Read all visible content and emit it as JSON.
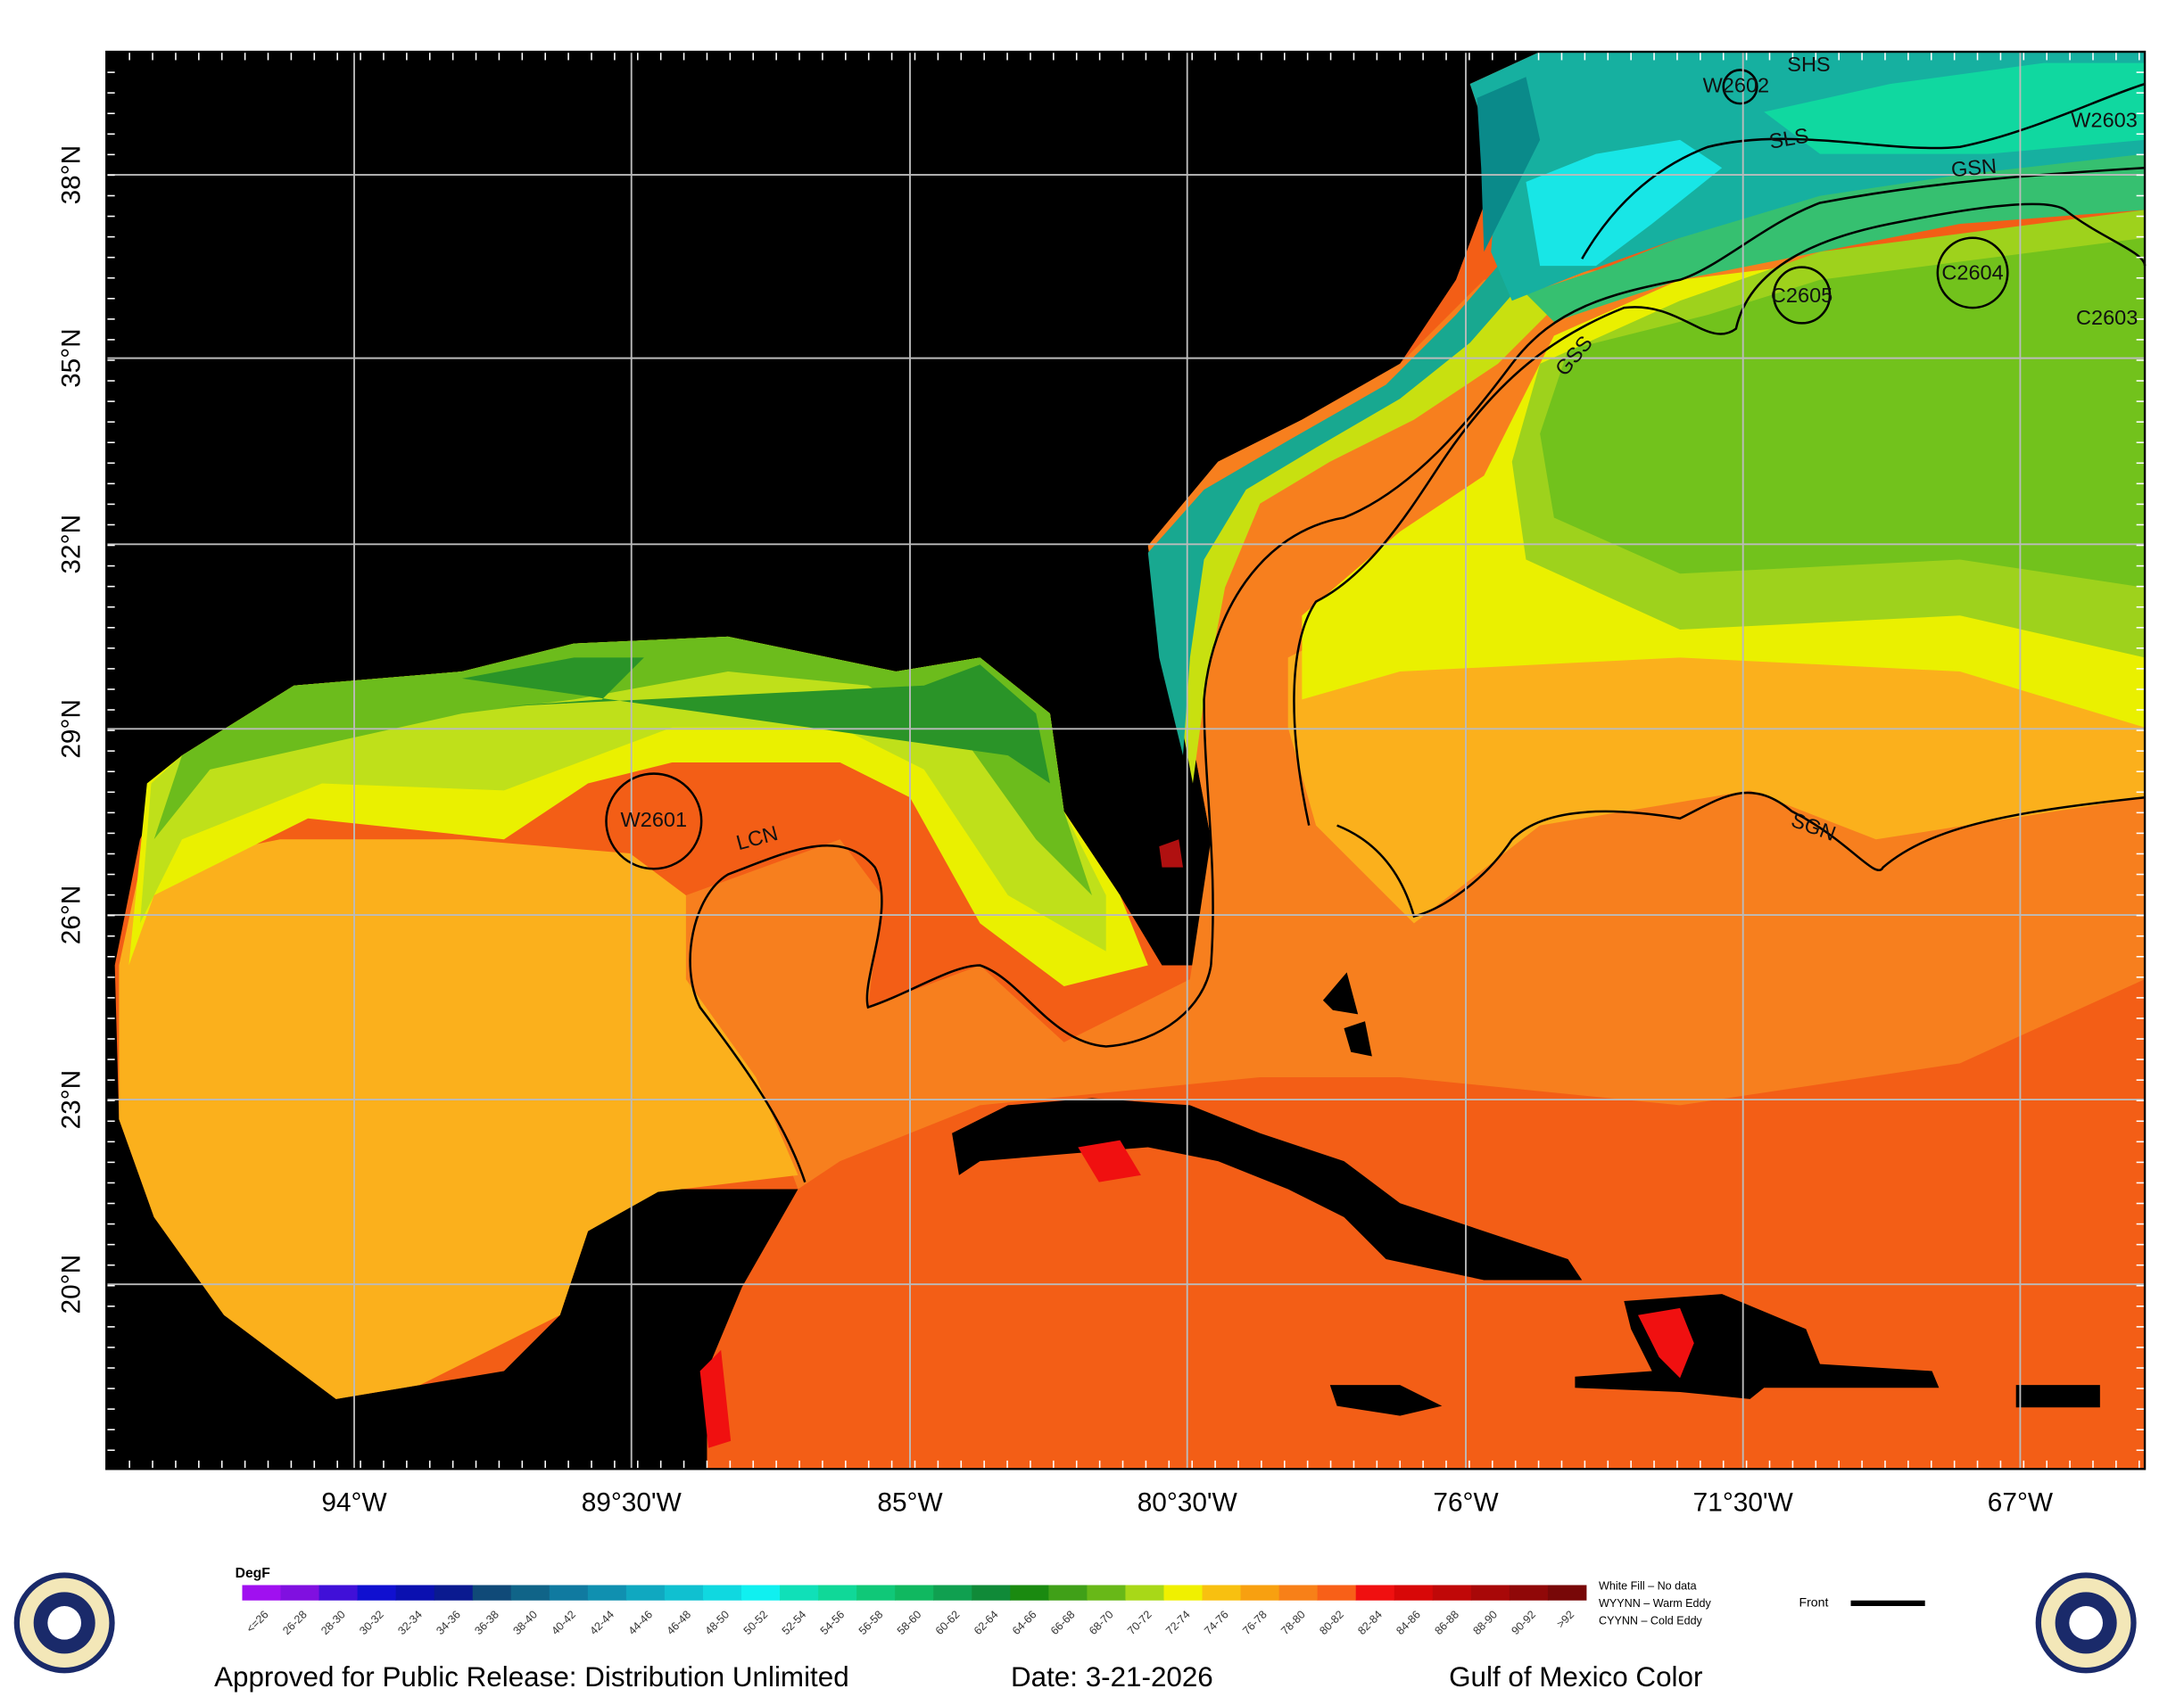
{
  "map": {
    "lon_labels": [
      "94°W",
      "89°30'W",
      "85°W",
      "80°30'W",
      "76°W",
      "71°30'W",
      "67°W"
    ],
    "lat_labels": [
      "38°N",
      "35°N",
      "32°N",
      "29°N",
      "26°N",
      "23°N",
      "20°N"
    ],
    "features": [
      "W2602",
      "SHS",
      "SLS",
      "GSN",
      "W2603",
      "C2605",
      "C2604",
      "C2603",
      "GSS",
      "W2601",
      "LCN",
      "SGN"
    ]
  },
  "legend": {
    "unit": "DegF",
    "classes": [
      {
        "label": "<=26",
        "color": "#a010f0"
      },
      {
        "label": "26-28",
        "color": "#8010e0"
      },
      {
        "label": "28-30",
        "color": "#4010d8"
      },
      {
        "label": "30-32",
        "color": "#1010d0"
      },
      {
        "label": "32-34",
        "color": "#0a10b0"
      },
      {
        "label": "34-36",
        "color": "#0a1a90"
      },
      {
        "label": "36-38",
        "color": "#104a78"
      },
      {
        "label": "38-40",
        "color": "#106488"
      },
      {
        "label": "40-42",
        "color": "#107aa0"
      },
      {
        "label": "42-44",
        "color": "#1090b0"
      },
      {
        "label": "44-46",
        "color": "#10a8c0"
      },
      {
        "label": "46-48",
        "color": "#10c0d0"
      },
      {
        "label": "48-50",
        "color": "#10d8e0"
      },
      {
        "label": "50-52",
        "color": "#10f0f0"
      },
      {
        "label": "52-54",
        "color": "#10e0b8"
      },
      {
        "label": "54-56",
        "color": "#10d898"
      },
      {
        "label": "56-58",
        "color": "#10c878"
      },
      {
        "label": "58-60",
        "color": "#10b860"
      },
      {
        "label": "60-62",
        "color": "#10a050"
      },
      {
        "label": "62-64",
        "color": "#108a38"
      },
      {
        "label": "64-66",
        "color": "#1a8a10"
      },
      {
        "label": "66-68",
        "color": "#40a018"
      },
      {
        "label": "68-70",
        "color": "#68b818"
      },
      {
        "label": "70-72",
        "color": "#a8d818"
      },
      {
        "label": "72-74",
        "color": "#f0f000"
      },
      {
        "label": "74-76",
        "color": "#f8c010"
      },
      {
        "label": "76-78",
        "color": "#f8a010"
      },
      {
        "label": "78-80",
        "color": "#f88018"
      },
      {
        "label": "80-82",
        "color": "#f86018"
      },
      {
        "label": "82-84",
        "color": "#f01010"
      },
      {
        "label": "84-86",
        "color": "#d80808"
      },
      {
        "label": "86-88",
        "color": "#c00808"
      },
      {
        "label": "88-90",
        "color": "#a80808"
      },
      {
        "label": "90-92",
        "color": "#900808"
      },
      {
        "label": ">92",
        "color": "#780808"
      }
    ],
    "notes": [
      "White Fill – No data",
      "WYYNN – Warm Eddy",
      "CYYNN – Cold Eddy"
    ],
    "front_label": "Front"
  },
  "footer": {
    "release": "Approved for Public Release:  Distribution Unlimited",
    "date": "Date:  3-21-2026",
    "title": "Gulf of Mexico Color"
  }
}
